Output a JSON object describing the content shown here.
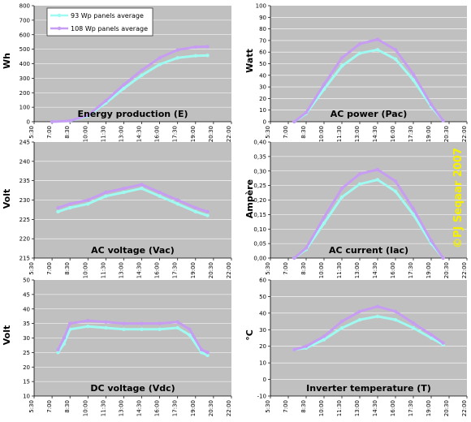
{
  "colors": {
    "plot_bg": "#c0c0c0",
    "series_93": "#9ffaf2",
    "series_108": "#c79cf3",
    "copyright": "#f4f000"
  },
  "legend": {
    "items": [
      {
        "label": "93 Wp panels average"
      },
      {
        "label": "108 Wp panels average"
      }
    ]
  },
  "copyright": "©PJ Seqaar 2007",
  "x_tick_labels": [
    "5:30",
    "7:00",
    "8:30",
    "10:00",
    "11:30",
    "13:00",
    "14:30",
    "16:00",
    "17:30",
    "19:00",
    "20:30",
    "22:00"
  ],
  "chart_data": [
    {
      "type": "line",
      "title": "Energy production (E)",
      "ylabel": "Wh",
      "ylim": [
        0,
        800
      ],
      "yticks": [
        "0",
        "100",
        "200",
        "300",
        "400",
        "500",
        "600",
        "700",
        "800"
      ],
      "x": [
        "7:00",
        "8:30",
        "10:00",
        "11:30",
        "13:00",
        "14:30",
        "16:00",
        "17:30",
        "19:00",
        "20:00"
      ],
      "series": [
        {
          "name": "93 Wp panels average",
          "values": [
            0,
            5,
            40,
            130,
            230,
            320,
            395,
            440,
            455,
            457
          ]
        },
        {
          "name": "108 Wp panels average",
          "values": [
            0,
            6,
            45,
            145,
            255,
            355,
            440,
            495,
            515,
            518
          ]
        }
      ]
    },
    {
      "type": "line",
      "title": "AC power (Pac)",
      "ylabel": "Watt",
      "ylim": [
        0,
        100
      ],
      "yticks": [
        "0",
        "10",
        "20",
        "30",
        "40",
        "50",
        "60",
        "70",
        "80",
        "90",
        "100"
      ],
      "x": [
        "7:30",
        "8:30",
        "10:00",
        "11:30",
        "13:00",
        "14:30",
        "16:00",
        "17:30",
        "19:00",
        "20:00"
      ],
      "series": [
        {
          "name": "93 Wp panels average",
          "values": [
            0,
            7,
            28,
            48,
            59,
            62,
            54,
            36,
            13,
            1
          ]
        },
        {
          "name": "108 Wp panels average",
          "values": [
            0,
            8,
            32,
            55,
            67,
            71,
            62,
            41,
            15,
            1
          ]
        }
      ]
    },
    {
      "type": "line",
      "title": "AC voltage (Vac)",
      "ylabel": "Volt",
      "ylim": [
        215,
        245
      ],
      "yticks": [
        "215",
        "220",
        "225",
        "230",
        "235",
        "240",
        "245"
      ],
      "x": [
        "7:30",
        "8:30",
        "10:00",
        "11:30",
        "13:00",
        "14:30",
        "16:00",
        "17:30",
        "19:00",
        "20:00"
      ],
      "series": [
        {
          "name": "93 Wp panels average",
          "values": [
            227,
            228,
            229,
            231,
            232,
            233,
            231,
            229,
            227,
            226
          ]
        },
        {
          "name": "108 Wp panels average",
          "values": [
            228,
            229,
            230,
            232,
            233,
            234,
            232,
            230,
            228,
            227
          ]
        }
      ]
    },
    {
      "type": "line",
      "title": "AC current (Iac)",
      "ylabel": "Ampère",
      "ylim": [
        0,
        0.4
      ],
      "yticks": [
        "0,00",
        "0,05",
        "0,10",
        "0,15",
        "0,20",
        "0,25",
        "0,30",
        "0,35",
        "0,40"
      ],
      "x": [
        "7:30",
        "8:30",
        "10:00",
        "11:30",
        "13:00",
        "14:30",
        "16:00",
        "17:30",
        "19:00",
        "20:00"
      ],
      "series": [
        {
          "name": "93 Wp panels average",
          "values": [
            0.0,
            0.03,
            0.12,
            0.21,
            0.255,
            0.27,
            0.23,
            0.15,
            0.05,
            0.0
          ]
        },
        {
          "name": "108 Wp panels average",
          "values": [
            0.0,
            0.035,
            0.14,
            0.24,
            0.29,
            0.305,
            0.265,
            0.17,
            0.06,
            0.0
          ]
        }
      ]
    },
    {
      "type": "line",
      "title": "DC voltage (Vdc)",
      "ylabel": "Volt",
      "ylim": [
        10,
        50
      ],
      "yticks": [
        "10",
        "15",
        "20",
        "25",
        "30",
        "35",
        "40",
        "45",
        "50"
      ],
      "x": [
        "7:30",
        "8:00",
        "8:30",
        "10:00",
        "11:30",
        "13:00",
        "14:30",
        "16:00",
        "17:30",
        "18:30",
        "19:30",
        "20:00"
      ],
      "series": [
        {
          "name": "93 Wp panels average",
          "values": [
            25,
            28,
            33,
            34,
            33.5,
            33,
            33,
            33,
            33.5,
            31,
            25,
            24
          ]
        },
        {
          "name": "108 Wp panels average",
          "values": [
            26,
            30,
            35,
            36,
            35.5,
            35,
            35,
            35,
            35.5,
            33,
            26,
            25
          ]
        }
      ]
    },
    {
      "type": "line",
      "title": "Inverter temperature (T)",
      "ylabel": "°C",
      "ylim": [
        -10,
        60
      ],
      "yticks": [
        "-10",
        "0",
        "10",
        "20",
        "30",
        "40",
        "50",
        "60"
      ],
      "x": [
        "7:30",
        "8:30",
        "10:00",
        "11:30",
        "13:00",
        "14:30",
        "16:00",
        "17:30",
        "19:00",
        "20:00"
      ],
      "series": [
        {
          "name": "93 Wp panels average",
          "values": [
            18,
            19,
            24,
            31,
            36,
            38,
            36,
            31,
            25,
            21
          ]
        },
        {
          "name": "108 Wp panels average",
          "values": [
            18,
            20,
            26,
            35,
            41,
            44,
            41,
            34,
            27,
            22
          ]
        }
      ]
    }
  ]
}
